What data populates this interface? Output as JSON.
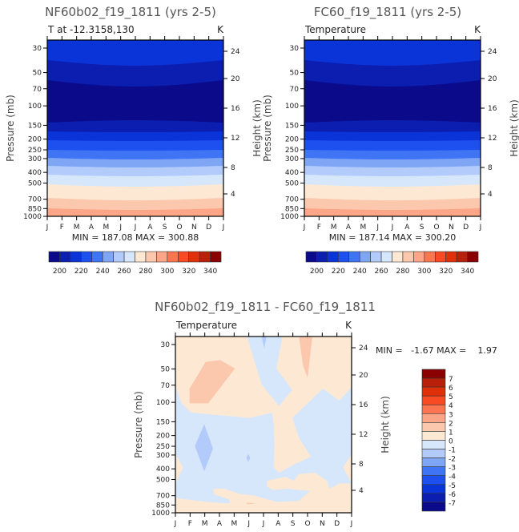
{
  "colors": {
    "palette_low_to_high": [
      "#0a0a8a",
      "#0b1eb0",
      "#0a34d8",
      "#1e50f0",
      "#3f74f5",
      "#7fa6f5",
      "#b3cbfa",
      "#d6e7fc",
      "#fde8d4",
      "#fcc8ad",
      "#fca587",
      "#fb7650",
      "#f84a23",
      "#e0300a",
      "#b8200a",
      "#8b0000"
    ]
  },
  "chart_data": [
    {
      "type": "heatmap",
      "title": "NF60b02_f19_1811 (yrs 2-5)",
      "subtitle": "T at -12.3158,130",
      "units": "K",
      "xlabel": "",
      "ylabel": "Pressure (mb)",
      "y2label": "Height (km)",
      "x_ticks": [
        "J",
        "F",
        "M",
        "A",
        "M",
        "J",
        "J",
        "A",
        "S",
        "O",
        "N",
        "D",
        "J"
      ],
      "y_ticks": [
        "30",
        "50",
        "70",
        "100",
        "150",
        "200",
        "250",
        "300",
        "400",
        "500",
        "700",
        "850",
        "1000"
      ],
      "y2_ticks": [
        "24",
        "20",
        "16",
        "12",
        "8",
        "4"
      ],
      "min_max_text": "MIN = 187.08 MAX = 300.88",
      "min": 187.08,
      "max": 300.88,
      "colorbar_labels": [
        "200",
        "220",
        "240",
        "260",
        "280",
        "300",
        "320",
        "340"
      ]
    },
    {
      "type": "heatmap",
      "title": "FC60_f19_1811 (yrs 2-5)",
      "subtitle": "Temperature",
      "units": "K",
      "xlabel": "",
      "ylabel": "Pressure (mb)",
      "y2label": "Height (km)",
      "x_ticks": [
        "J",
        "F",
        "M",
        "A",
        "M",
        "J",
        "J",
        "A",
        "S",
        "O",
        "N",
        "D",
        "J"
      ],
      "y_ticks": [
        "30",
        "50",
        "70",
        "100",
        "150",
        "200",
        "250",
        "300",
        "400",
        "500",
        "700",
        "850",
        "1000"
      ],
      "y2_ticks": [
        "24",
        "20",
        "16",
        "12",
        "8",
        "4"
      ],
      "min_max_text": "MIN = 187.14 MAX = 300.20",
      "min": 187.14,
      "max": 300.2,
      "colorbar_labels": [
        "200",
        "220",
        "240",
        "260",
        "280",
        "300",
        "320",
        "340"
      ]
    },
    {
      "type": "heatmap",
      "title": "NF60b02_f19_1811 - FC60_f19_1811",
      "subtitle": "Temperature",
      "units": "K",
      "xlabel": "",
      "ylabel": "Pressure (mb)",
      "y2label": "Height (km)",
      "x_ticks": [
        "J",
        "F",
        "M",
        "A",
        "M",
        "J",
        "J",
        "A",
        "S",
        "O",
        "N",
        "D",
        "J"
      ],
      "y_ticks": [
        "30",
        "50",
        "70",
        "100",
        "150",
        "200",
        "250",
        "300",
        "400",
        "500",
        "700",
        "850",
        "1000"
      ],
      "y2_ticks": [
        "24",
        "20",
        "16",
        "12",
        "8",
        "4"
      ],
      "min_max_text": "MIN =   -1.67 MAX =    1.97",
      "min": -1.67,
      "max": 1.97,
      "colorbar_labels": [
        "7",
        "6",
        "5",
        "4",
        "3",
        "2",
        "1",
        "0",
        "-1",
        "-2",
        "-3",
        "-4",
        "-5",
        "-6",
        "-7"
      ]
    }
  ]
}
